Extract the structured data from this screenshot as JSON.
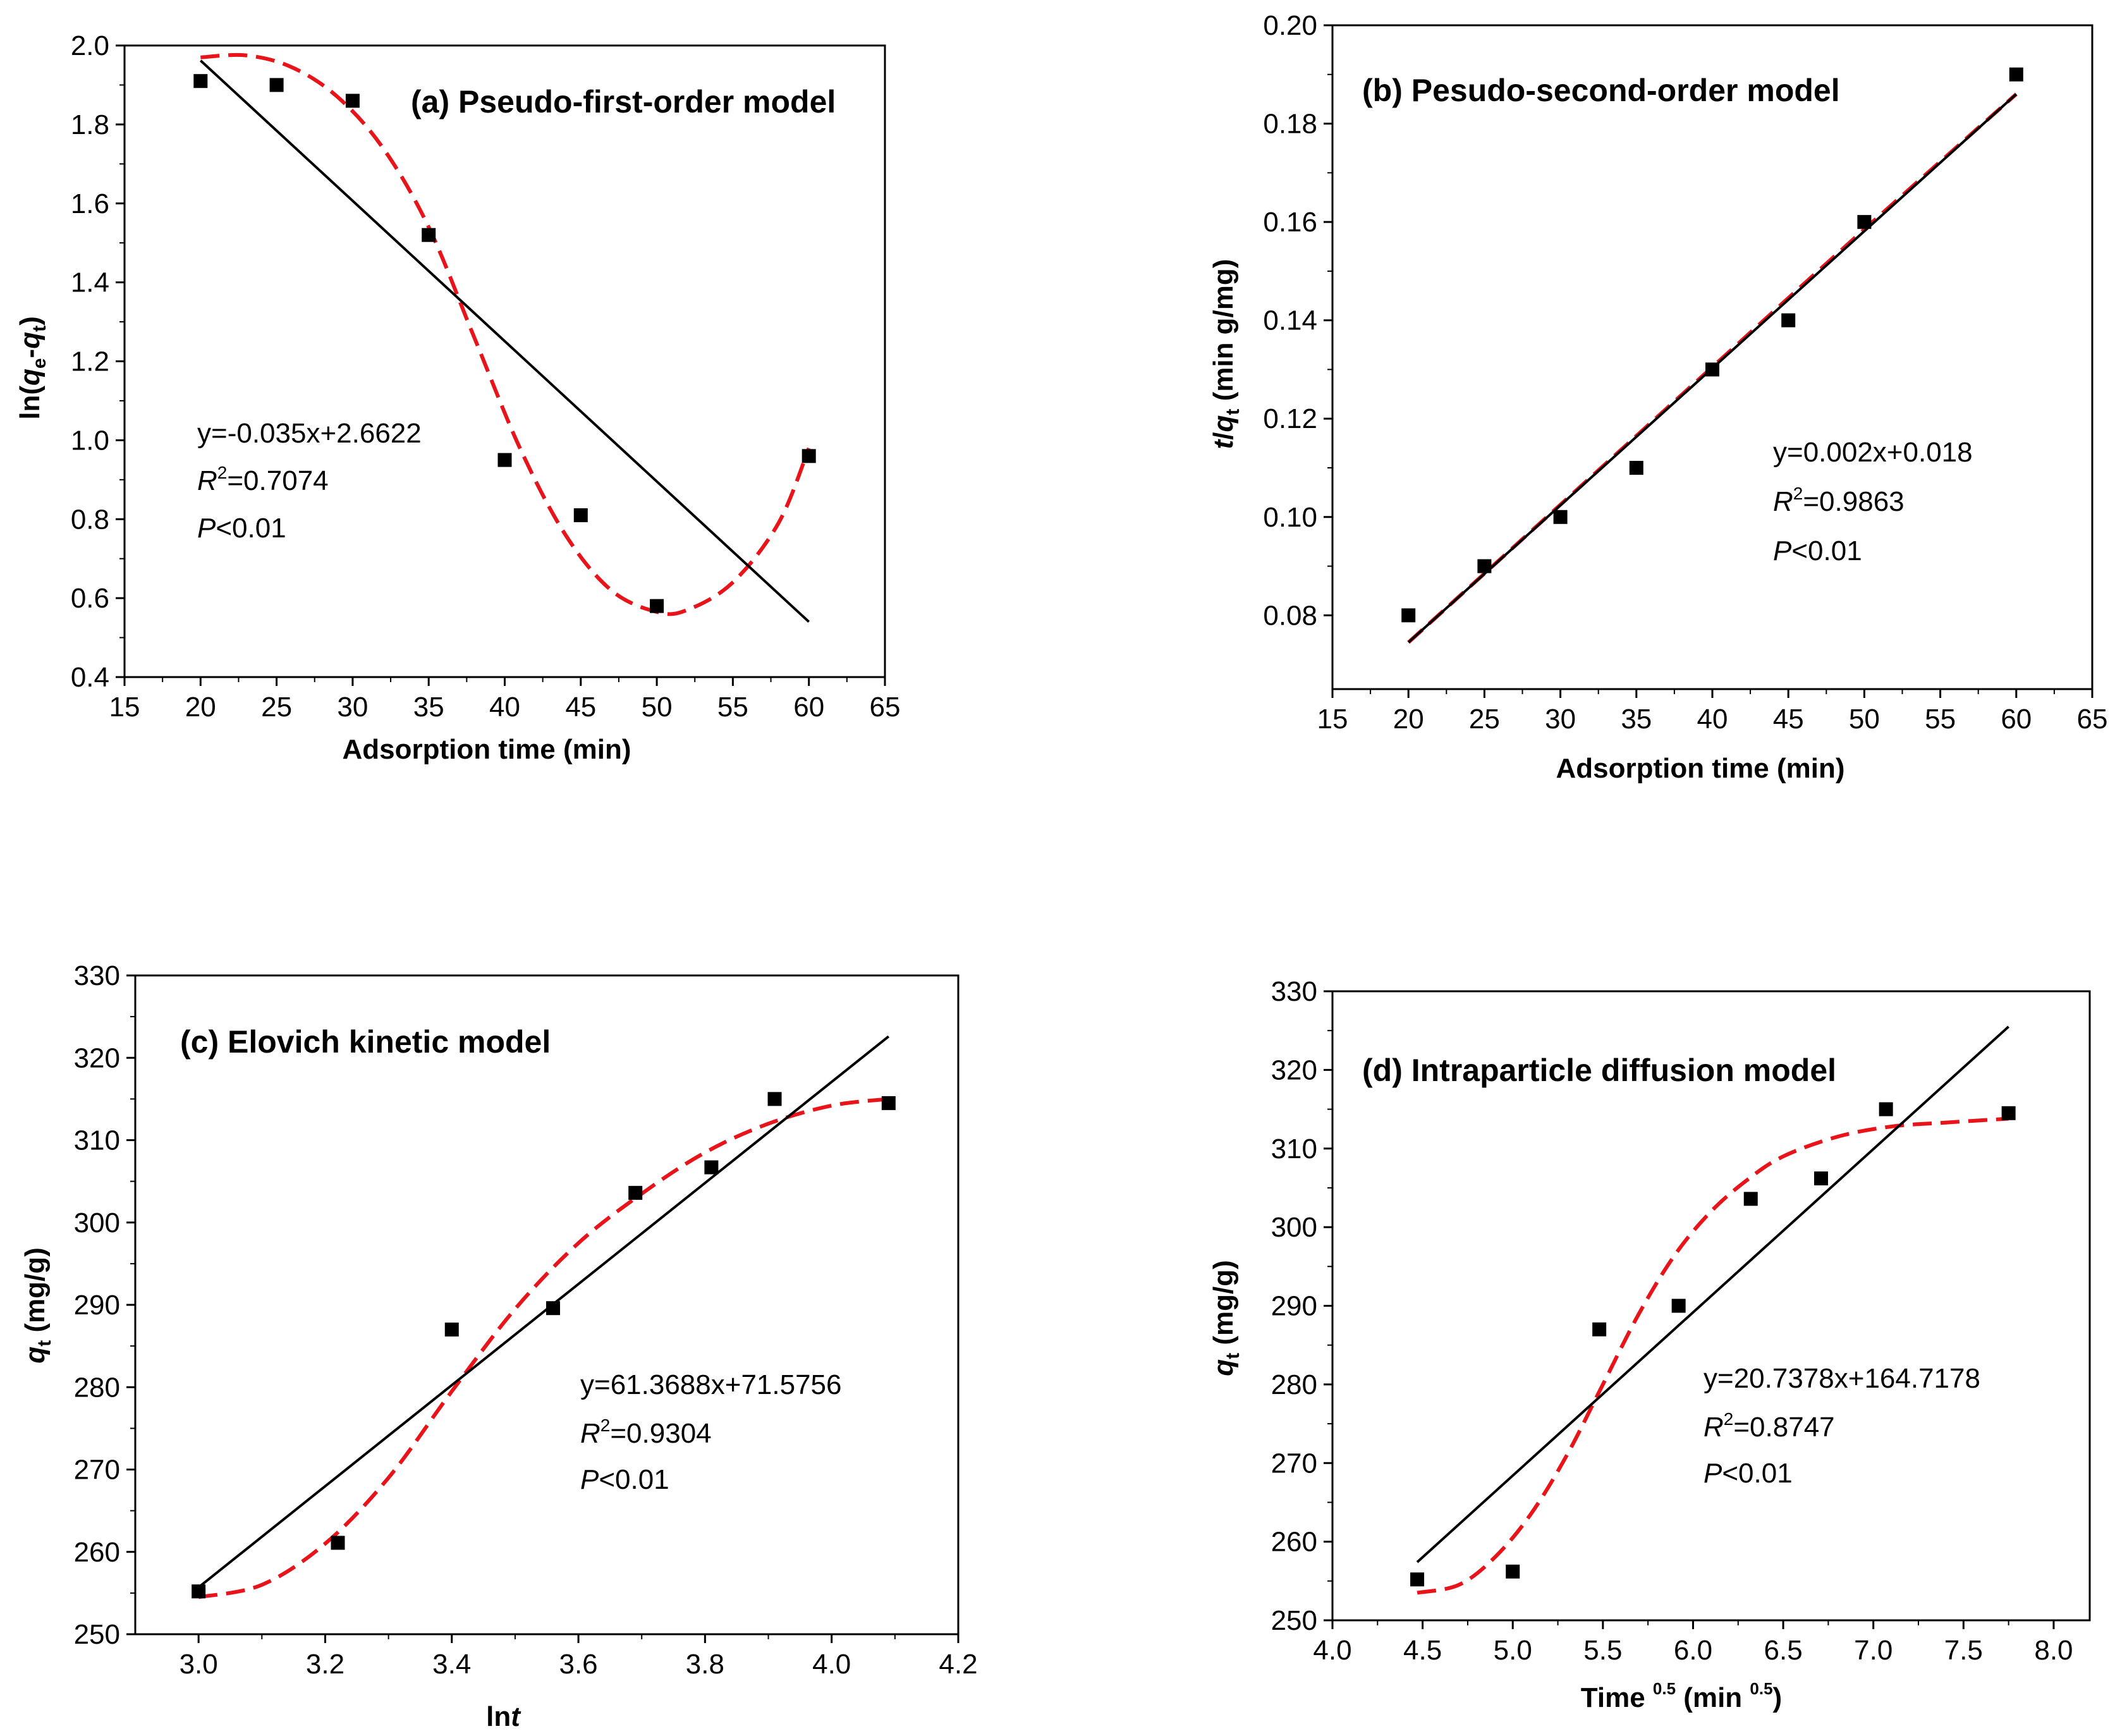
{
  "chart_data": [
    {
      "type": "scatter",
      "title": "(a) Pseudo-first-order model",
      "xlabel": "Adsorption time (min)",
      "ylabel": {
        "pre": "ln(",
        "v1": "q",
        "s1": "e",
        "mid": "-",
        "v2": "q",
        "s2": "t",
        "post": ")"
      },
      "xlim": [
        15,
        65
      ],
      "ylim": [
        0.4,
        2.0
      ],
      "xticks": [
        "15",
        "20",
        "25",
        "30",
        "35",
        "40",
        "45",
        "50",
        "55",
        "60",
        "65"
      ],
      "yticks": [
        "0.4",
        "0.6",
        "0.8",
        "1.0",
        "1.2",
        "1.4",
        "1.6",
        "1.8",
        "2.0"
      ],
      "points": [
        [
          20,
          1.91
        ],
        [
          25,
          1.9
        ],
        [
          30,
          1.86
        ],
        [
          35,
          1.52
        ],
        [
          40,
          0.95
        ],
        [
          45,
          0.81
        ],
        [
          50,
          0.58
        ],
        [
          60,
          0.96
        ]
      ],
      "fit_line": [
        [
          20,
          1.962
        ],
        [
          60,
          0.54
        ]
      ],
      "fit_curve": [
        [
          20,
          1.97
        ],
        [
          23,
          1.975
        ],
        [
          26,
          1.945
        ],
        [
          29,
          1.87
        ],
        [
          32,
          1.74
        ],
        [
          35,
          1.54
        ],
        [
          38,
          1.26
        ],
        [
          41,
          0.98
        ],
        [
          44,
          0.76
        ],
        [
          47,
          0.62
        ],
        [
          50,
          0.565
        ],
        [
          52,
          0.57
        ],
        [
          55,
          0.64
        ],
        [
          58,
          0.79
        ],
        [
          60,
          0.98
        ]
      ],
      "equation": {
        "line1": "y=-0.035x+2.6622",
        "r_label": "R",
        "r_sup": "2",
        "r_val": "=0.7074",
        "p_label": "P",
        "p_val": "<0.01"
      },
      "series_colors": {
        "points": "#000000",
        "fit_line": "#000000",
        "fit_curve": "#e8141a"
      }
    },
    {
      "type": "scatter",
      "title": "(b) Pesudo-second-order model",
      "xlabel": "Adsorption time (min)",
      "ylabel": {
        "v1": "t",
        "mid": "/",
        "v2": "q",
        "s2": "t",
        "post": " (min g/mg)"
      },
      "xlim": [
        15,
        65
      ],
      "ylim": [
        0.065,
        0.2
      ],
      "xticks": [
        "15",
        "20",
        "25",
        "30",
        "35",
        "40",
        "45",
        "50",
        "55",
        "60",
        "65"
      ],
      "yticks": [
        "0.08",
        "0.10",
        "0.12",
        "0.14",
        "0.16",
        "0.18",
        "0.20"
      ],
      "yticks_values": [
        0.08,
        0.1,
        0.12,
        0.14,
        0.16,
        0.18,
        0.2
      ],
      "points": [
        [
          20,
          0.08
        ],
        [
          25,
          0.09
        ],
        [
          30,
          0.1
        ],
        [
          35,
          0.11
        ],
        [
          40,
          0.13
        ],
        [
          45,
          0.14
        ],
        [
          50,
          0.16
        ],
        [
          60,
          0.19
        ]
      ],
      "fit_line": [
        [
          20,
          0.0745
        ],
        [
          60,
          0.186
        ]
      ],
      "fit_curve": [
        [
          20,
          0.0745
        ],
        [
          30,
          0.1025
        ],
        [
          40,
          0.1305
        ],
        [
          50,
          0.1585
        ],
        [
          60,
          0.186
        ]
      ],
      "equation": {
        "line1": "y=0.002x+0.018",
        "r_label": "R",
        "r_sup": "2",
        "r_val": "=0.9863",
        "p_label": "P",
        "p_val": "<0.01"
      },
      "series_colors": {
        "points": "#000000",
        "fit_line": "#000000",
        "fit_curve": "#e8141a"
      }
    },
    {
      "type": "scatter",
      "title": "(c) Elovich kinetic model",
      "xlabel": {
        "pre": "ln",
        "var": "t"
      },
      "ylabel": {
        "v1": "q",
        "s1": "t",
        "post": " (mg/g)"
      },
      "xlim": [
        2.9,
        4.2
      ],
      "ylim": [
        250,
        330
      ],
      "xticks": [
        "3.0",
        "3.2",
        "3.4",
        "3.6",
        "3.8",
        "4.0",
        "4.2"
      ],
      "xticks_values": [
        3.0,
        3.2,
        3.4,
        3.6,
        3.8,
        4.0,
        4.2
      ],
      "yticks": [
        "250",
        "260",
        "270",
        "280",
        "290",
        "300",
        "310",
        "320",
        "330"
      ],
      "points": [
        [
          3.0,
          255.2
        ],
        [
          3.22,
          261.1
        ],
        [
          3.4,
          287.0
        ],
        [
          3.56,
          289.6
        ],
        [
          3.69,
          303.6
        ],
        [
          3.81,
          306.7
        ],
        [
          3.91,
          315.0
        ],
        [
          4.09,
          314.5
        ]
      ],
      "fit_line": [
        [
          3.0,
          255.7
        ],
        [
          4.09,
          322.6
        ]
      ],
      "fit_curve": [
        [
          3.0,
          254.5
        ],
        [
          3.1,
          256.0
        ],
        [
          3.2,
          261.0
        ],
        [
          3.3,
          269.0
        ],
        [
          3.4,
          279.5
        ],
        [
          3.5,
          289.5
        ],
        [
          3.6,
          297.5
        ],
        [
          3.7,
          303.5
        ],
        [
          3.8,
          308.5
        ],
        [
          3.9,
          312.0
        ],
        [
          4.0,
          314.2
        ],
        [
          4.09,
          315.0
        ]
      ],
      "equation": {
        "line1": "y=61.3688x+71.5756",
        "r_label": "R",
        "r_sup": "2",
        "r_val": "=0.9304",
        "p_label": "P",
        "p_val": "<0.01"
      },
      "series_colors": {
        "points": "#000000",
        "fit_line": "#000000",
        "fit_curve": "#e8141a"
      }
    },
    {
      "type": "scatter",
      "title": "(d) Intraparticle diffusion model",
      "xlabel": {
        "pre": "Time ",
        "sup1": "0.5",
        "mid": " (min ",
        "sup2": "0.5",
        "post": ")"
      },
      "ylabel": {
        "v1": "q",
        "s1": "t",
        "post": " (mg/g)"
      },
      "xlim": [
        4.0,
        8.2
      ],
      "ylim": [
        250,
        330
      ],
      "xticks": [
        "4.0",
        "4.5",
        "5.0",
        "5.5",
        "6.0",
        "6.5",
        "7.0",
        "7.5",
        "8.0"
      ],
      "xticks_values": [
        4.0,
        4.5,
        5.0,
        5.5,
        6.0,
        6.5,
        7.0,
        7.5,
        8.0
      ],
      "yticks": [
        "250",
        "260",
        "270",
        "280",
        "290",
        "300",
        "310",
        "320",
        "330"
      ],
      "points": [
        [
          4.47,
          255.2
        ],
        [
          5.0,
          256.2
        ],
        [
          5.48,
          287.0
        ],
        [
          5.92,
          290.0
        ],
        [
          6.32,
          303.6
        ],
        [
          6.71,
          306.2
        ],
        [
          7.07,
          315.0
        ],
        [
          7.75,
          314.5
        ]
      ],
      "fit_line": [
        [
          4.47,
          257.4
        ],
        [
          7.75,
          325.5
        ]
      ],
      "fit_curve": [
        [
          4.47,
          253.5
        ],
        [
          4.7,
          254.5
        ],
        [
          4.9,
          258.0
        ],
        [
          5.1,
          263.5
        ],
        [
          5.3,
          271.0
        ],
        [
          5.5,
          280.0
        ],
        [
          5.7,
          289.0
        ],
        [
          5.9,
          296.5
        ],
        [
          6.1,
          302.0
        ],
        [
          6.3,
          306.0
        ],
        [
          6.5,
          309.0
        ],
        [
          6.8,
          311.5
        ],
        [
          7.1,
          312.8
        ],
        [
          7.4,
          313.3
        ],
        [
          7.75,
          313.8
        ]
      ],
      "equation": {
        "line1": "y=20.7378x+164.7178",
        "r_label": "R",
        "r_sup": "2",
        "r_val": "=0.8747",
        "p_label": "P",
        "p_val": "<0.01"
      },
      "series_colors": {
        "points": "#000000",
        "fit_line": "#000000",
        "fit_curve": "#e8141a"
      }
    }
  ]
}
